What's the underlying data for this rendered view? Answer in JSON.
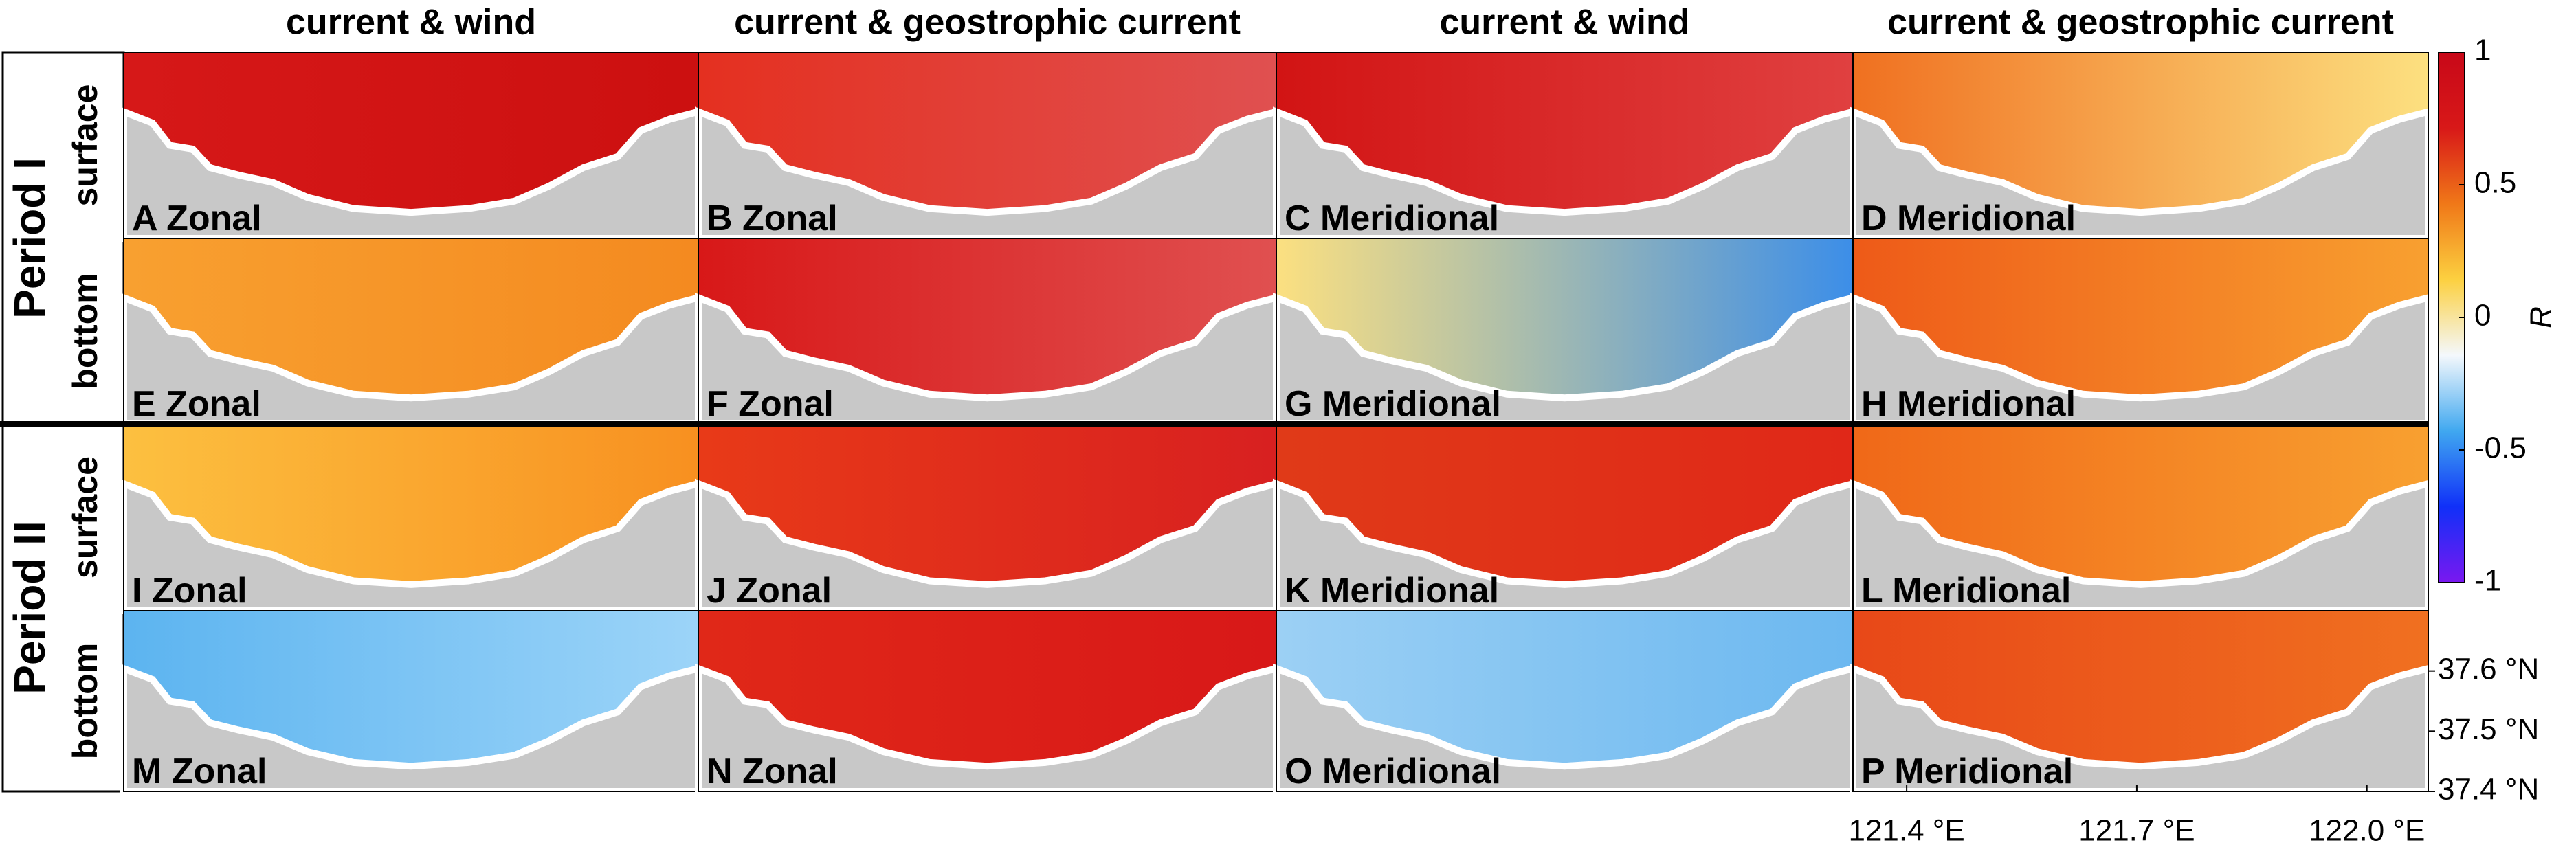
{
  "columns": [
    "current & wind",
    "current & geostrophic current",
    "current & wind",
    "current & geostrophic current"
  ],
  "periods": [
    {
      "label": "Period I",
      "layers": [
        "surface",
        "bottom"
      ]
    },
    {
      "label": "Period II",
      "layers": [
        "surface",
        "bottom"
      ]
    }
  ],
  "panels": [
    {
      "letter": "A",
      "label": "Zonal",
      "colors": [
        "#d61818",
        "#cc1010"
      ]
    },
    {
      "letter": "B",
      "label": "Zonal",
      "colors": [
        "#e43020",
        "#e05050"
      ]
    },
    {
      "letter": "C",
      "label": "Meridional",
      "colors": [
        "#d21414",
        "#e04040"
      ]
    },
    {
      "letter": "D",
      "label": "Meridional",
      "colors": [
        "#f07020",
        "#fce080"
      ]
    },
    {
      "letter": "E",
      "label": "Zonal",
      "colors": [
        "#f8a030",
        "#f48a20"
      ]
    },
    {
      "letter": "F",
      "label": "Zonal",
      "colors": [
        "#d81818",
        "#e05050"
      ]
    },
    {
      "letter": "G",
      "label": "Meridional",
      "colors": [
        "#fce080",
        "#3c8ee8"
      ]
    },
    {
      "letter": "H",
      "label": "Meridional",
      "colors": [
        "#ee5a18",
        "#f8a030"
      ]
    },
    {
      "letter": "I",
      "label": "Zonal",
      "colors": [
        "#fcc040",
        "#f89020"
      ]
    },
    {
      "letter": "J",
      "label": "Zonal",
      "colors": [
        "#e83a18",
        "#d82020"
      ]
    },
    {
      "letter": "K",
      "label": "Meridional",
      "colors": [
        "#e03a18",
        "#e02818"
      ]
    },
    {
      "letter": "L",
      "label": "Meridional",
      "colors": [
        "#f06818",
        "#f8a030"
      ]
    },
    {
      "letter": "M",
      "label": "Zonal",
      "colors": [
        "#5cb4f0",
        "#9cd4f8"
      ]
    },
    {
      "letter": "N",
      "label": "Zonal",
      "colors": [
        "#e02818",
        "#d81818"
      ]
    },
    {
      "letter": "O",
      "label": "Meridional",
      "colors": [
        "#9cd0f4",
        "#6cb8f0"
      ]
    },
    {
      "letter": "P",
      "label": "Meridional",
      "colors": [
        "#e84818",
        "#f07020"
      ]
    }
  ],
  "colorbar": {
    "label": "R",
    "clim": [
      -1,
      1
    ],
    "ticks": [
      1,
      0.5,
      0,
      -0.5,
      -1
    ],
    "colors": [
      "#7a18f0",
      "#1030f8",
      "#40a8f0",
      "#f4f8fc",
      "#fcd040",
      "#f07818",
      "#d81818",
      "#c80818"
    ]
  },
  "map_axes": {
    "ylim": [
      37.4,
      37.7
    ],
    "yticks": [
      {
        "value": 37.6,
        "label": "37.6 °N"
      },
      {
        "value": 37.5,
        "label": "37.5 °N"
      },
      {
        "value": 37.4,
        "label": "37.4 °N"
      }
    ],
    "xlim": [
      121.33,
      122.08
    ],
    "xticks": [
      {
        "value": 121.4,
        "label": "121.4 °E"
      },
      {
        "value": 121.7,
        "label": "121.7 °E"
      },
      {
        "value": 122.0,
        "label": "122.0 °E"
      }
    ]
  }
}
